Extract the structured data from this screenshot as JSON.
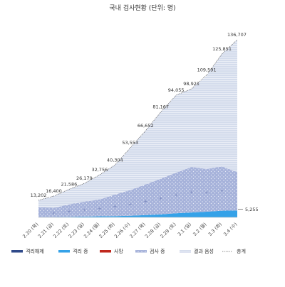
{
  "chart_data": {
    "type": "area",
    "title": "국내 검사현황 (단위: 명)",
    "categories": [
      "2.20 (목)",
      "2.21 (금)",
      "2.22 (토)",
      "2.23 (일)",
      "2.24 (월)",
      "2.25 (화)",
      "2.26 (수)",
      "2.27 (목)",
      "2.28 (금)",
      "2.29 (토)",
      "3.1 (일)",
      "3.2 (월)",
      "3.3 (화)",
      "3.4 (수)"
    ],
    "ylim": [
      0,
      140000
    ],
    "series": [
      {
        "name": "격리해제",
        "color": "#2f4a8a",
        "values": [
          16,
          17,
          18,
          18,
          18,
          22,
          22,
          22,
          22,
          24,
          27,
          28,
          30,
          30
        ]
      },
      {
        "name": "격리 중",
        "color": "#35a2e8",
        "values": [
          88,
          187,
          415,
          585,
          815,
          955,
          1240,
          1744,
          2309,
          3126,
          3709,
          4307,
          5105,
          5225
        ]
      },
      {
        "name": "사망",
        "color": "#c0281e",
        "values": [
          1,
          2,
          2,
          5,
          7,
          10,
          11,
          13,
          16,
          17,
          18,
          28,
          32,
          32
        ]
      },
      {
        "name": "검사 중",
        "color": "#8c9bcf",
        "values": [
          7800,
          7000,
          9500,
          11500,
          13000,
          16500,
          19800,
          23500,
          27400,
          31300,
          35000,
          33000,
          34000,
          29500
        ]
      },
      {
        "name": "결과 음성",
        "color": "#c2cde6",
        "values": [
          5297,
          9194,
          11651,
          14071,
          18916,
          22797,
          32308,
          41373,
          51413,
          59589,
          60171,
          71580,
          86695,
          101927
        ]
      }
    ],
    "total": {
      "name": "총계",
      "values": [
        13202,
        16400,
        21586,
        26179,
        32756,
        40304,
        53553,
        66652,
        81167,
        94055,
        98921,
        109591,
        125851,
        136707
      ]
    },
    "data_labels": [
      "13,202",
      "16,400",
      "21,586",
      "26,179",
      "32,756",
      "40,304",
      "53,553",
      "66,652",
      "81,167",
      "94,055",
      "98,921",
      "109,591",
      "125,851",
      "136,707"
    ],
    "end_annotation": "5,255"
  }
}
